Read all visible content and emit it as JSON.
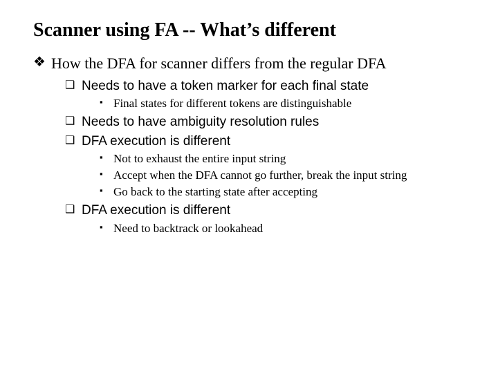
{
  "title": "Scanner using FA -- What’s different",
  "colors": {
    "text": "#000000",
    "background": "#ffffff"
  },
  "typography": {
    "title": {
      "family": "Times New Roman",
      "size_pt": 28,
      "weight": "bold"
    },
    "lvl1": {
      "family": "Times New Roman",
      "size_pt": 22,
      "weight": "normal"
    },
    "lvl2": {
      "family": "Arial",
      "size_pt": 19,
      "weight": "normal"
    },
    "lvl3": {
      "family": "Times New Roman",
      "size_pt": 17,
      "weight": "normal"
    }
  },
  "bullet_glyphs": {
    "lvl1": "❖",
    "lvl2": "❑",
    "lvl3": "▪"
  },
  "lvl1": [
    {
      "text": "How the DFA for scanner differs from the regular DFA",
      "children": [
        {
          "text": "Needs to have a token marker for each final state",
          "children": [
            {
              "text": "Final states for different tokens are distinguishable"
            }
          ]
        },
        {
          "text": "Needs to have ambiguity resolution rules",
          "children": []
        },
        {
          "text": "DFA execution is different",
          "children": [
            {
              "text": "Not to exhaust the entire input string"
            },
            {
              "text": "Accept when the DFA cannot go further, break the input string"
            },
            {
              "text": "Go back to the starting state after accepting"
            }
          ]
        },
        {
          "text": "DFA execution is different",
          "children": [
            {
              "text": "Need to backtrack or lookahead"
            }
          ]
        }
      ]
    }
  ]
}
